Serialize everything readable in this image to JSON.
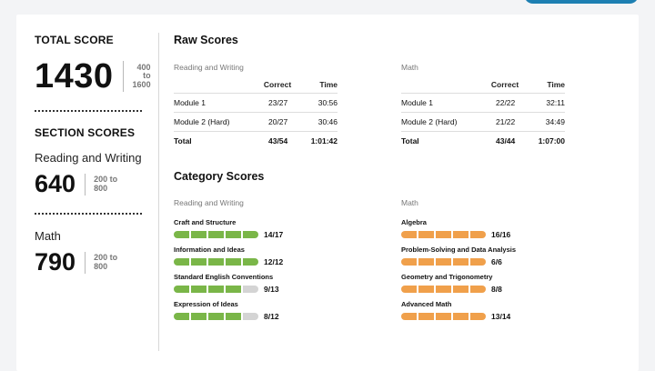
{
  "total": {
    "label": "TOTAL SCORE",
    "score": "1430",
    "range_lines": [
      "400",
      "to",
      "1600"
    ]
  },
  "section": {
    "label": "SECTION SCORES",
    "items": [
      {
        "name": "Reading and Writing",
        "score": "640",
        "range_lines": [
          "200 to",
          "800"
        ]
      },
      {
        "name": "Math",
        "score": "790",
        "range_lines": [
          "200 to",
          "800"
        ]
      }
    ]
  },
  "raw": {
    "heading": "Raw Scores",
    "tables": [
      {
        "subject": "Reading and Writing",
        "headers": [
          "",
          "Correct",
          "Time"
        ],
        "rows": [
          [
            "Module 1",
            "23/27",
            "30:56"
          ],
          [
            "Module 2 (Hard)",
            "20/27",
            "30:46"
          ],
          [
            "Total",
            "43/54",
            "1:01:42"
          ]
        ]
      },
      {
        "subject": "Math",
        "headers": [
          "",
          "Correct",
          "Time"
        ],
        "rows": [
          [
            "Module 1",
            "22/22",
            "32:11"
          ],
          [
            "Module 2 (Hard)",
            "21/22",
            "34:49"
          ],
          [
            "Total",
            "43/44",
            "1:07:00"
          ]
        ]
      }
    ]
  },
  "category": {
    "heading": "Category Scores",
    "groups": [
      {
        "subject": "Reading and Writing",
        "color": "#7ab648",
        "items": [
          {
            "name": "Craft and Structure",
            "score": "14/17",
            "filled_segments": 5
          },
          {
            "name": "Information and Ideas",
            "score": "12/12",
            "filled_segments": 5
          },
          {
            "name": "Standard English Conventions",
            "score": "9/13",
            "filled_segments": 4
          },
          {
            "name": "Expression of Ideas",
            "score": "8/12",
            "filled_segments": 4
          }
        ]
      },
      {
        "subject": "Math",
        "color": "#f0a04b",
        "items": [
          {
            "name": "Algebra",
            "score": "16/16",
            "filled_segments": 5
          },
          {
            "name": "Problem-Solving and Data Analysis",
            "score": "6/6",
            "filled_segments": 5
          },
          {
            "name": "Geometry and Trigonometry",
            "score": "8/8",
            "filled_segments": 5
          },
          {
            "name": "Advanced Math",
            "score": "13/14",
            "filled_segments": 5
          }
        ]
      }
    ],
    "empty_color": "#d4d4d4",
    "total_segments": 5
  }
}
